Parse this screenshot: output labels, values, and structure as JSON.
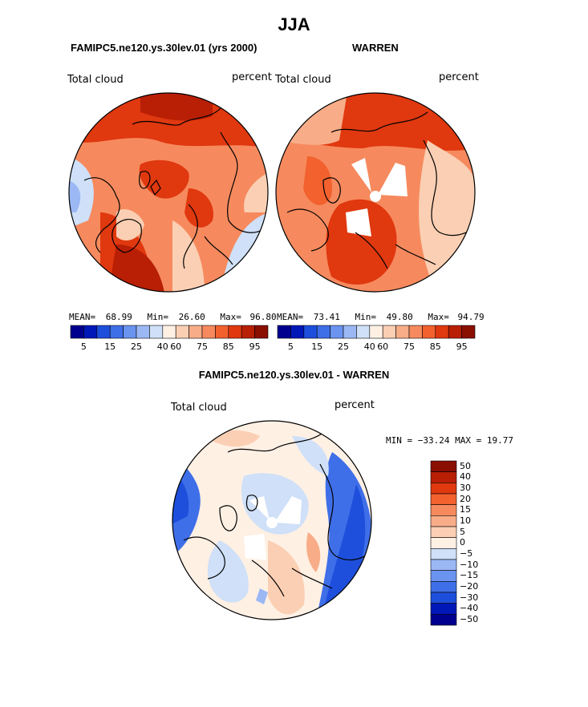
{
  "title": "JJA",
  "panels": [
    {
      "title": "FAMIPC5.ne120.ys.30lev.01 (yrs 2000)",
      "variable": "Total cloud",
      "units": "percent",
      "stats": {
        "mean_label": "MEAN=",
        "mean": "68.99",
        "min_label": "Min=",
        "min": "26.60",
        "max_label": "Max=",
        "max": "96.80"
      }
    },
    {
      "title": "WARREN",
      "variable": "Total cloud",
      "units": "percent",
      "stats": {
        "mean_label": "MEAN=",
        "mean": "73.41",
        "min_label": "Min=",
        "min": "49.80",
        "max_label": "Max=",
        "max": "94.79"
      }
    }
  ],
  "horizontal_colorbar": {
    "colors": [
      "#00008f",
      "#0018b8",
      "#1e4fdc",
      "#3f6fe8",
      "#6b93f0",
      "#9bb8f5",
      "#cfe0f8",
      "#fff0e4",
      "#fbcfb3",
      "#f8ad88",
      "#f68a5e",
      "#f2612e",
      "#e0380f",
      "#b81f05",
      "#8a0f00"
    ],
    "tick_labels": [
      "5",
      "15",
      "25",
      "40",
      "60",
      "75",
      "85",
      "95"
    ]
  },
  "diff_panel": {
    "title": "FAMIPC5.ne120.ys.30lev.01 - WARREN",
    "variable": "Total cloud",
    "units": "percent",
    "stats_text": "MIN = −33.24 MAX =  19.77"
  },
  "vertical_colorbar": {
    "colors_top_to_bottom": [
      "#8a0f00",
      "#b81f05",
      "#e0380f",
      "#f2612e",
      "#f68a5e",
      "#f8ad88",
      "#fbcfb3",
      "#fff0e4",
      "#cfe0f8",
      "#9bb8f5",
      "#6b93f0",
      "#3f6fe8",
      "#1e4fdc",
      "#0018b8",
      "#00008f"
    ],
    "tick_labels": [
      "50",
      "40",
      "30",
      "20",
      "15",
      "10",
      "5",
      "0",
      "−5",
      "−10",
      "−15",
      "−20",
      "−30",
      "−40",
      "−50"
    ]
  }
}
